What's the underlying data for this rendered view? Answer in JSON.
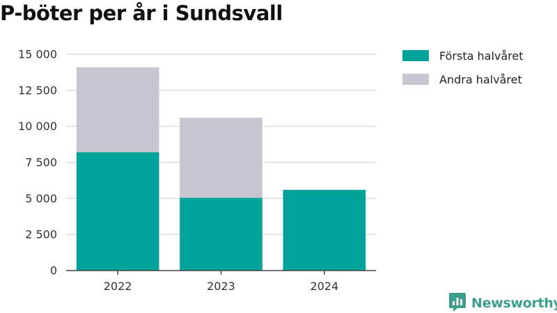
{
  "title": "P-böter per år i Sundsvall",
  "brand": {
    "name": "Newsworthy",
    "icon": "newsworthy-logo-icon",
    "color": "#3d9e8d"
  },
  "colors": {
    "series1": "#00a399",
    "series2": "#c8c7d1",
    "grid": "#dddddd",
    "axis": "#444444",
    "text": "#333333"
  },
  "chart_data": {
    "type": "bar",
    "stacked": true,
    "title": "P-böter per år i Sundsvall",
    "xlabel": "",
    "ylabel": "",
    "categories": [
      "2022",
      "2023",
      "2024"
    ],
    "series": [
      {
        "name": "Första halvåret",
        "values": [
          8200,
          5050,
          5600
        ],
        "color": "#00a399"
      },
      {
        "name": "Andra halvåret",
        "values": [
          5900,
          5550,
          0
        ],
        "color": "#c8c7d1"
      }
    ],
    "ylim": [
      0,
      15000
    ],
    "yticks": [
      0,
      2500,
      5000,
      7500,
      10000,
      12500,
      15000
    ],
    "ytick_labels": [
      "0",
      "2 500",
      "5 000",
      "7 500",
      "10 000",
      "12 500",
      "15 000"
    ],
    "grid": true,
    "legend": "top-right"
  }
}
